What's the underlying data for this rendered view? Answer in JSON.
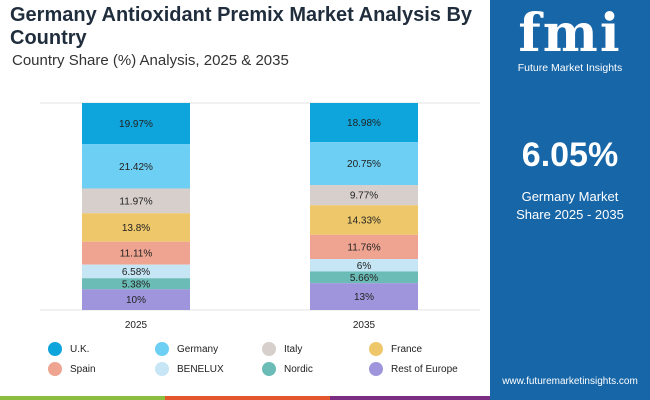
{
  "title": "Germany Antioxidant Premix Market Analysis By Country",
  "subtitle": "Country Share (%) Analysis, 2025 & 2035",
  "chart_data": {
    "type": "bar",
    "stacked": true,
    "categories": [
      "2025",
      "2035"
    ],
    "ylim": [
      0,
      100
    ],
    "grid": false,
    "legend_placement": "bottom",
    "series": [
      {
        "name": "U.K.",
        "color": "#0ea5dc",
        "values": [
          19.97,
          18.98
        ],
        "labels": [
          "19.97%",
          "18.98%"
        ]
      },
      {
        "name": "Germany",
        "color": "#6dcff3",
        "values": [
          21.42,
          20.75
        ],
        "labels": [
          "21.42%",
          "20.75%"
        ]
      },
      {
        "name": "Italy",
        "color": "#d7cfcc",
        "values": [
          11.97,
          9.77
        ],
        "labels": [
          "11.97%",
          "9.77%"
        ]
      },
      {
        "name": "France",
        "color": "#edc76a",
        "values": [
          13.8,
          14.33
        ],
        "labels": [
          "13.8%",
          "14.33%"
        ]
      },
      {
        "name": "Spain",
        "color": "#eea490",
        "values": [
          11.11,
          11.76
        ],
        "labels": [
          "11.11%",
          "11.76%"
        ]
      },
      {
        "name": "BENELUX",
        "color": "#c6e5f5",
        "values": [
          6.58,
          6
        ],
        "labels": [
          "6.58%",
          "6%"
        ]
      },
      {
        "name": "Nordic",
        "color": "#6bbcb6",
        "values": [
          5.38,
          5.66
        ],
        "labels": [
          "5.38%",
          "5.66%"
        ]
      },
      {
        "name": "Rest of Europe",
        "color": "#9f95dc",
        "values": [
          10,
          13
        ],
        "labels": [
          "10%",
          "13%"
        ]
      }
    ]
  },
  "panel": {
    "logo_letters": "fmi",
    "logo_text": "Future Market Insights",
    "value": "6.05%",
    "desc_line1": "Germany Market",
    "desc_line2": "Share 2025 - 2035",
    "url": "www.futuremarketinsights.com",
    "bg_color": "#1766a8"
  }
}
